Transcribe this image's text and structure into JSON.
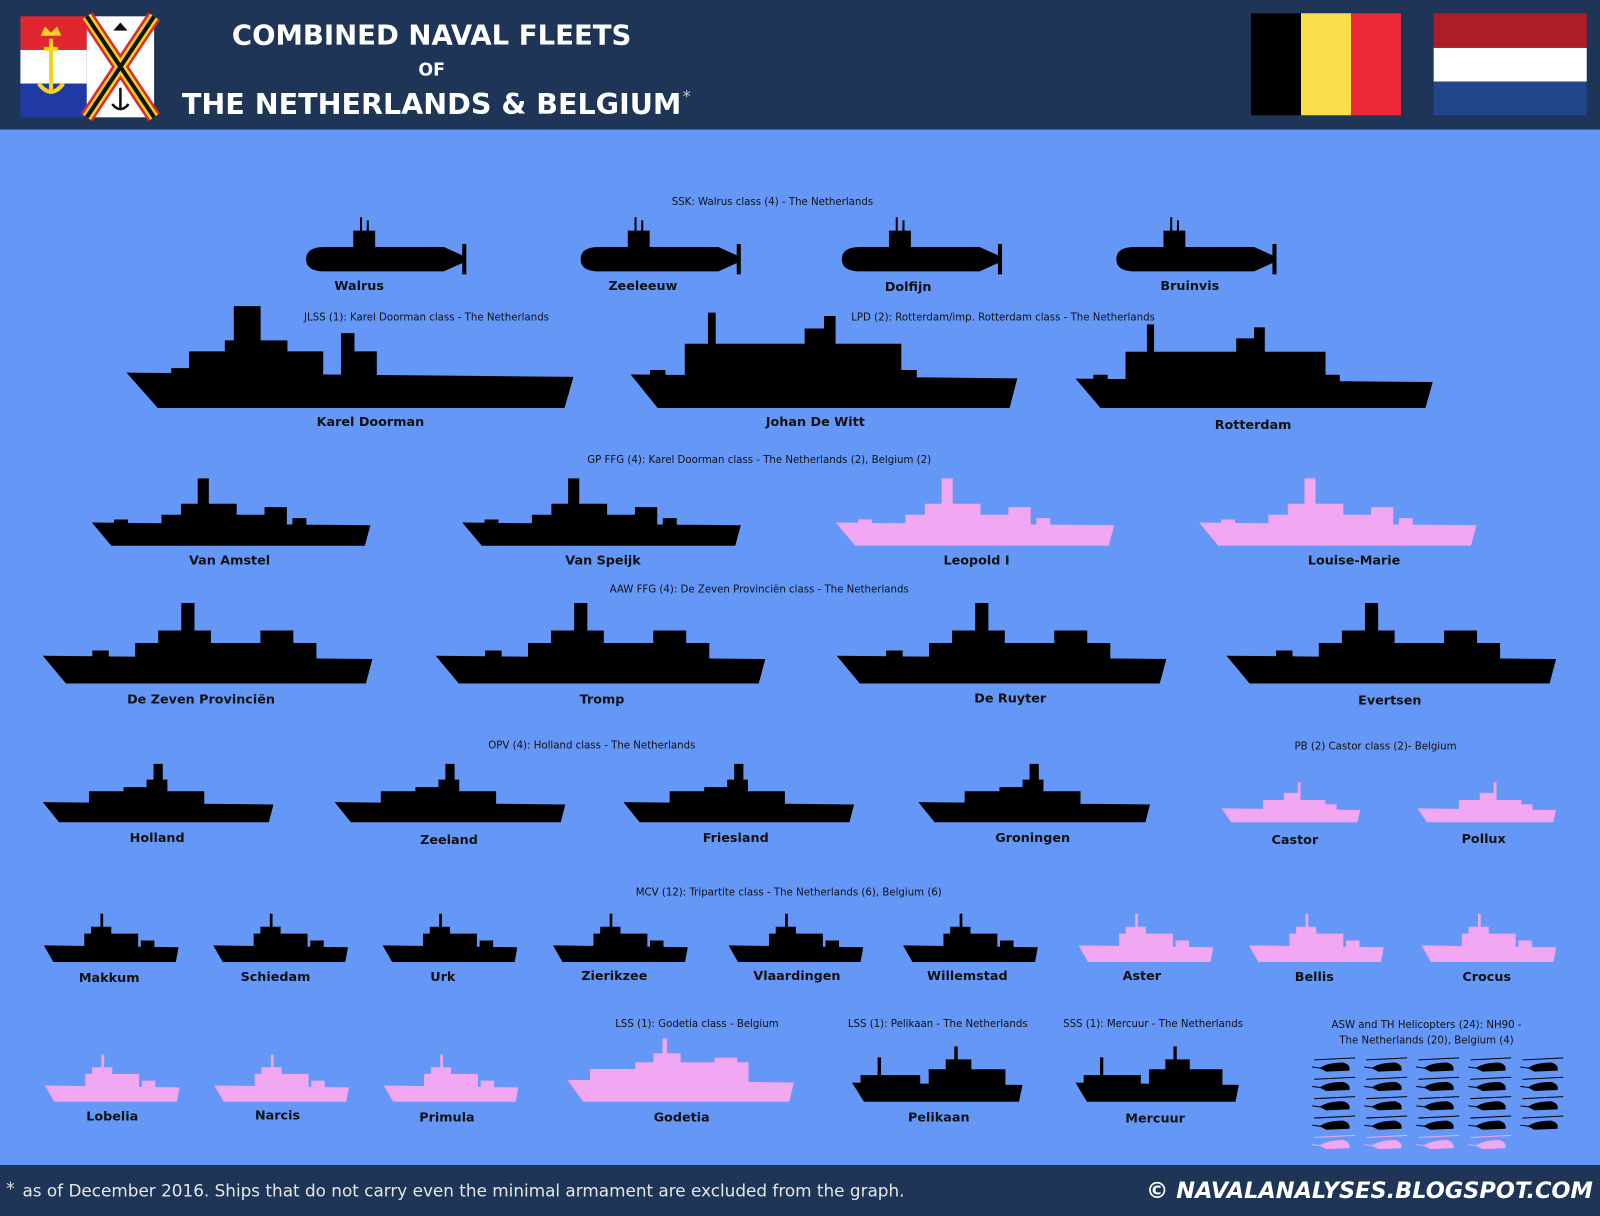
{
  "header": {
    "title_line1": "COMBINED NAVAL FLEETS",
    "title_line2": "OF",
    "title_line3": "THE NETHERLANDS & BELGIUM",
    "title_mark": "*"
  },
  "groups": [
    {
      "label": [
        "SSK: Walrus class (4) - The Netherlands"
      ],
      "ships": [
        {
          "name": "Walrus",
          "color": "#000000"
        },
        {
          "name": "Zeeleeuw",
          "color": "#000000"
        },
        {
          "name": "Dolfijn",
          "color": "#000000"
        },
        {
          "name": "Bruinvis",
          "color": "#000000"
        }
      ]
    },
    {
      "label": [
        "JLSS (1): Karel Doorman class - The Netherlands"
      ],
      "ships": [
        {
          "name": "Karel Doorman",
          "color": "#000000"
        }
      ]
    },
    {
      "label": [
        "LPD (2): Rotterdam/imp. Rotterdam class - The Netherlands"
      ],
      "ships": [
        {
          "name": "Johan De Witt",
          "color": "#000000"
        },
        {
          "name": "Rotterdam",
          "color": "#000000"
        }
      ]
    },
    {
      "label": [
        "GP FFG (4): Karel Doorman class - The Netherlands (2), Belgium (2)"
      ],
      "ships": [
        {
          "name": "Van Amstel",
          "color": "#000000"
        },
        {
          "name": "Van Speijk",
          "color": "#000000"
        },
        {
          "name": "Leopold I",
          "color": "#f2a7f2"
        },
        {
          "name": "Louise-Marie",
          "color": "#f2a7f2"
        }
      ]
    },
    {
      "label": [
        "AAW FFG (4): De Zeven Provinciën class - The Netherlands"
      ],
      "ships": [
        {
          "name": "De Zeven Provinciën",
          "color": "#000000"
        },
        {
          "name": "Tromp",
          "color": "#000000"
        },
        {
          "name": "De Ruyter",
          "color": "#000000"
        },
        {
          "name": "Evertsen",
          "color": "#000000"
        }
      ]
    },
    {
      "label": [
        "OPV (4): Holland class - The Netherlands"
      ],
      "ships": [
        {
          "name": "Holland",
          "color": "#000000"
        },
        {
          "name": "Zeeland",
          "color": "#000000"
        },
        {
          "name": "Friesland",
          "color": "#000000"
        },
        {
          "name": "Groningen",
          "color": "#000000"
        }
      ]
    },
    {
      "label": [
        "PB (2) Castor class (2)- Belgium"
      ],
      "ships": [
        {
          "name": "Castor",
          "color": "#f2a7f2"
        },
        {
          "name": "Pollux",
          "color": "#f2a7f2"
        }
      ]
    },
    {
      "label": [
        "MCV (12): Tripartite class - The Netherlands (6), Belgium (6)"
      ],
      "ships": [
        {
          "name": "Makkum",
          "color": "#000000"
        },
        {
          "name": "Schiedam",
          "color": "#000000"
        },
        {
          "name": "Urk",
          "color": "#000000"
        },
        {
          "name": "Zierikzee",
          "color": "#000000"
        },
        {
          "name": "Vlaardingen",
          "color": "#000000"
        },
        {
          "name": "Willemstad",
          "color": "#000000"
        },
        {
          "name": "Aster",
          "color": "#f2a7f2"
        },
        {
          "name": "Bellis",
          "color": "#f2a7f2"
        },
        {
          "name": "Crocus",
          "color": "#f2a7f2"
        },
        {
          "name": "Lobelia",
          "color": "#f2a7f2"
        },
        {
          "name": "Narcis",
          "color": "#f2a7f2"
        },
        {
          "name": "Primula",
          "color": "#f2a7f2"
        }
      ]
    },
    {
      "label": [
        "LSS (1): Godetia class - Belgium"
      ],
      "ships": [
        {
          "name": "Godetia",
          "color": "#f2a7f2"
        }
      ]
    },
    {
      "label": [
        "LSS (1): Pelikaan - The Netherlands"
      ],
      "ships": [
        {
          "name": "Pelikaan",
          "color": "#000000"
        }
      ]
    },
    {
      "label": [
        "SSS (1): Mercuur - The Netherlands"
      ],
      "ships": [
        {
          "name": "Mercuur",
          "color": "#000000"
        }
      ]
    }
  ],
  "helicopters": {
    "label": [
      "ASW and TH Helicopters (24): NH90 -",
      "The Netherlands (20), Belgium (4)"
    ],
    "fleets": [
      {
        "count": 20,
        "color": "#000000"
      },
      {
        "count": 4,
        "color": "#f2a7f2"
      }
    ]
  },
  "footer": {
    "note_mark": "*",
    "note": "as of December 2016. Ships that do not carry even the minimal armament are excluded from the graph.",
    "credit": "© NAVALANALYSES.BLOGSPOT.COM"
  }
}
